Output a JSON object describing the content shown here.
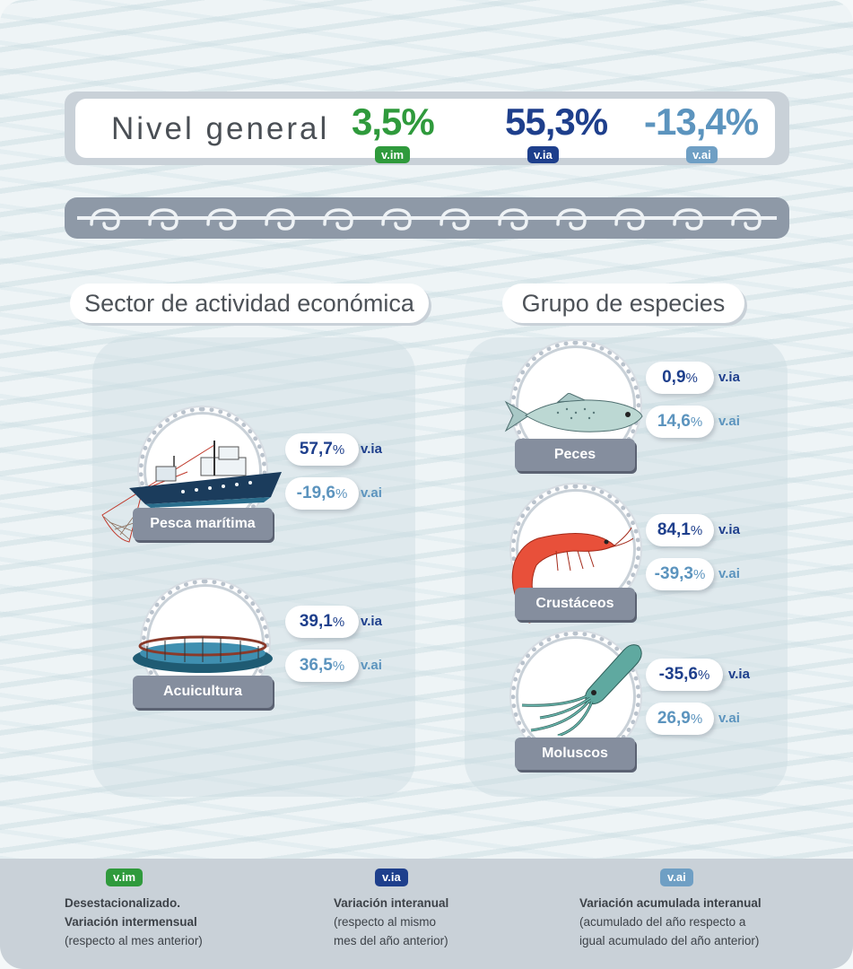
{
  "header": {
    "title": "Nivel general",
    "vim_value": "3,5%",
    "via_value": "55,3%",
    "vai_value": "-13,4%",
    "vim_badge": "v.im",
    "via_badge": "v.ia",
    "vai_badge": "v.ai"
  },
  "sections": {
    "sector_title": "Sector de actividad económica",
    "group_title": "Grupo de especies"
  },
  "sector": [
    {
      "label": "Pesca marítima",
      "via": "57,7",
      "vai": "-19,6",
      "icon": "fishing-boat-icon"
    },
    {
      "label": "Acuicultura",
      "via": "39,1",
      "vai": "36,5",
      "icon": "fish-farm-cage-icon"
    }
  ],
  "species": [
    {
      "label": "Peces",
      "via": "0,9",
      "vai": "14,6",
      "icon": "fish-icon"
    },
    {
      "label": "Crustáceos",
      "via": "84,1",
      "vai": "-39,3",
      "icon": "shrimp-icon"
    },
    {
      "label": "Moluscos",
      "via": "-35,6",
      "vai": "26,9",
      "icon": "squid-icon"
    }
  ],
  "units": {
    "pct": "%",
    "via": "v.ia",
    "vai": "v.ai"
  },
  "legend": {
    "vim": {
      "badge": "v.im",
      "line1": "Desestacionalizado.",
      "line2": "Variación intermensual",
      "line3": "(respecto al mes anterior)"
    },
    "via": {
      "badge": "v.ia",
      "line1": "Variación interanual",
      "line2": "(respecto al mismo",
      "line3": "mes del año anterior)"
    },
    "vai": {
      "badge": "v.ai",
      "line1": "Variación acumulada interanual",
      "line2": "(acumulado del año respecto a",
      "line3": "igual acumulado del año anterior)"
    }
  },
  "colors": {
    "vim": "#2f9a3c",
    "via": "#1e3f8c",
    "vai": "#5c94be",
    "label_box": "#858e9e"
  }
}
